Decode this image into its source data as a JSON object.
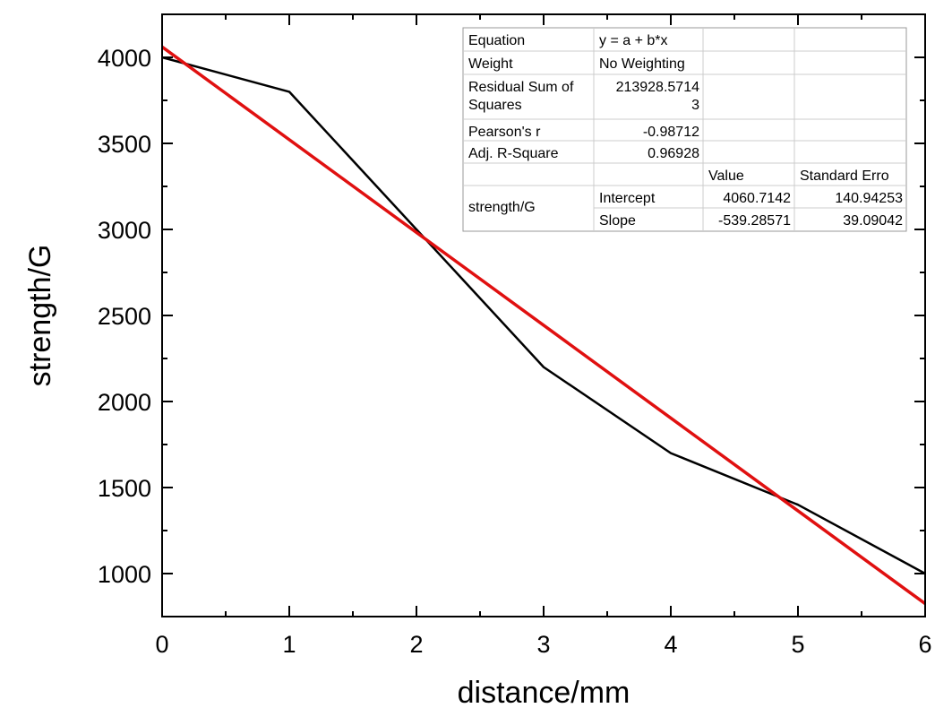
{
  "chart_data": {
    "type": "line",
    "xlabel": "distance/mm",
    "ylabel": "strength/G",
    "xlim": [
      0,
      6
    ],
    "ylim": [
      750,
      4250
    ],
    "x_ticks": [
      0,
      1,
      2,
      3,
      4,
      5,
      6
    ],
    "y_ticks": [
      1000,
      1500,
      2000,
      2500,
      3000,
      3500,
      4000
    ],
    "grid": false,
    "series": [
      {
        "color": "#000000",
        "x": [
          0,
          1,
          2,
          3,
          4,
          5,
          6
        ],
        "y": [
          4000,
          3800,
          3000,
          2200,
          1700,
          1400,
          1000
        ]
      },
      {
        "color": "#e01010",
        "x": [
          0,
          6
        ],
        "y": [
          4060.7142,
          824.9999
        ]
      }
    ],
    "stats_table": {
      "rows": [
        [
          "Equation",
          "y = a + b*x",
          "",
          ""
        ],
        [
          "Weight",
          "No Weighting",
          "",
          ""
        ],
        [
          "Residual Sum of Squares",
          "213928.57143",
          "",
          ""
        ],
        [
          "Pearson's r",
          "-0.98712",
          "",
          ""
        ],
        [
          "Adj. R-Square",
          "0.96928",
          "",
          ""
        ],
        [
          "",
          "",
          "Value",
          "Standard Erro"
        ],
        [
          "strength/G",
          "Intercept",
          "4060.7142",
          "140.94253"
        ],
        [
          "",
          "Slope",
          "-539.28571",
          "39.09042"
        ]
      ]
    }
  }
}
